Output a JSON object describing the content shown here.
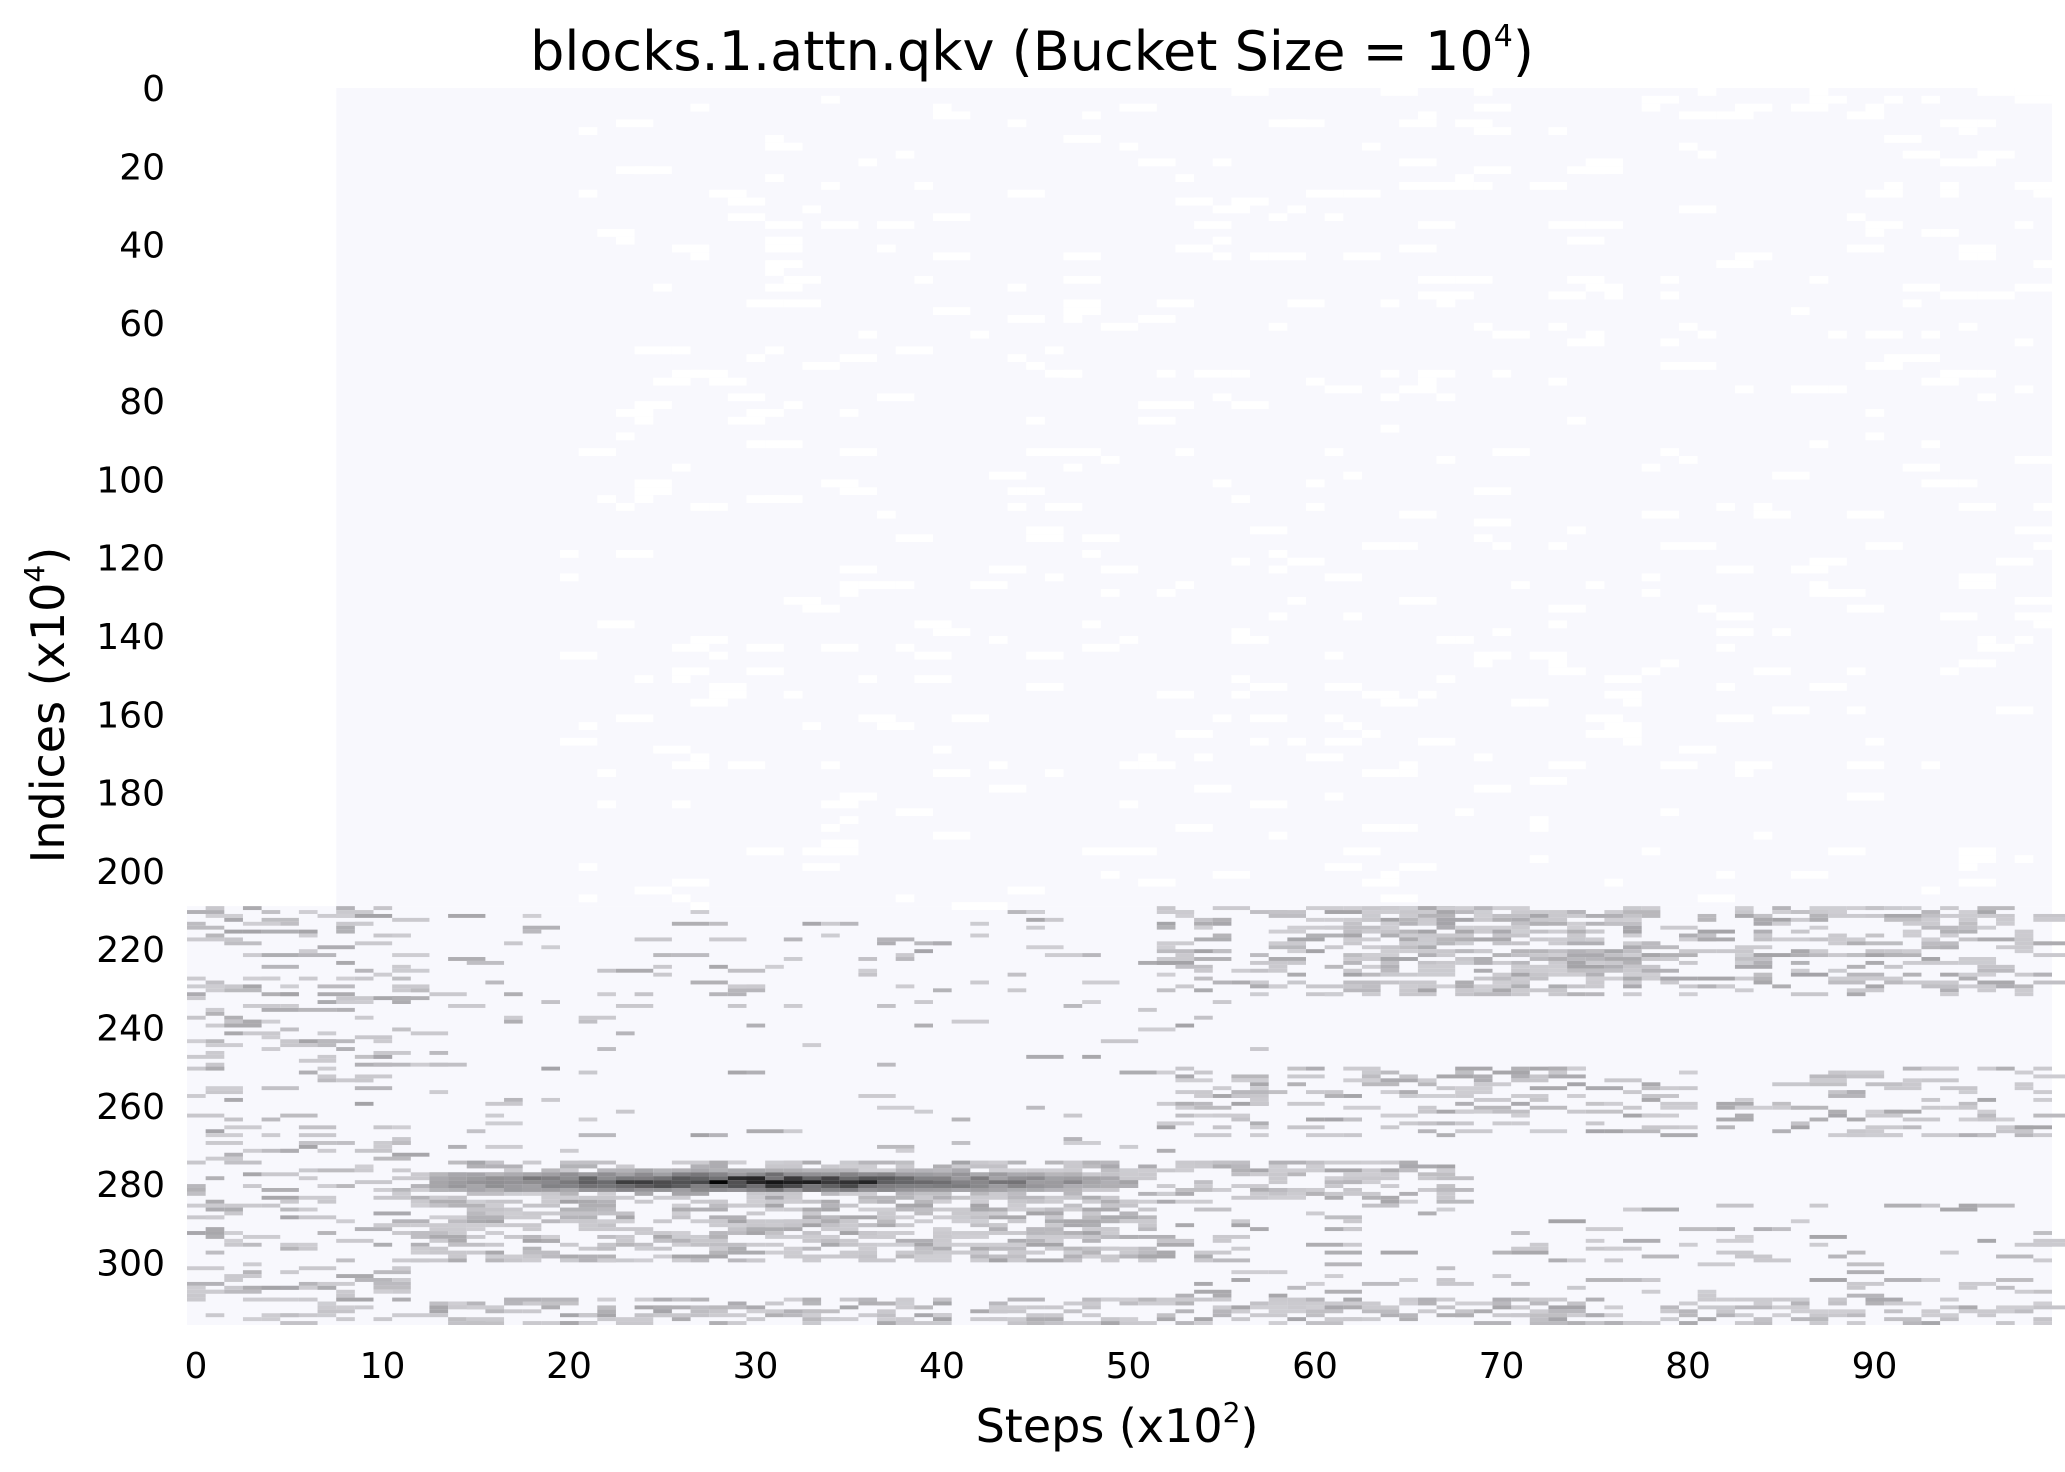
{
  "chart_data": {
    "type": "heatmap",
    "title": "blocks.1.attn.qkv (Bucket Size = 10",
    "title_exponent": "4",
    "title_suffix": ")",
    "xlabel": "Steps (x10",
    "xlabel_exponent": "2",
    "xlabel_suffix": ")",
    "ylabel": "Indices (x10",
    "ylabel_exponent": "4",
    "ylabel_suffix": ")",
    "x_ticks": [
      0,
      10,
      20,
      30,
      40,
      50,
      60,
      70,
      80,
      90
    ],
    "y_ticks": [
      0,
      20,
      40,
      60,
      80,
      100,
      120,
      140,
      160,
      180,
      200,
      220,
      240,
      260,
      280,
      300
    ],
    "x_range": [
      0,
      100
    ],
    "y_range": [
      0,
      316
    ],
    "grid": false,
    "colorbar": false,
    "colormap": [
      "#ffffff",
      "#f8f8fd",
      "#c8c7cc",
      "#000000"
    ],
    "background_bands": [
      {
        "y": [
          0,
          209
        ],
        "x": [
          8,
          100
        ],
        "level": 1
      },
      {
        "y": [
          209,
          316
        ],
        "x": [
          0,
          100
        ],
        "level": 1
      }
    ],
    "activity_regions": [
      {
        "x": [
          0,
          12
        ],
        "y": [
          209,
          316
        ],
        "density": 0.22,
        "level": 2
      },
      {
        "x": [
          12,
          52
        ],
        "y": [
          209,
          232
        ],
        "density": 0.06,
        "level": 2
      },
      {
        "x": [
          52,
          62
        ],
        "y": [
          209,
          232
        ],
        "density": 0.3,
        "level": 2
      },
      {
        "x": [
          62,
          78
        ],
        "y": [
          209,
          232
        ],
        "density": 0.65,
        "level": 2
      },
      {
        "x": [
          78,
          100
        ],
        "y": [
          209,
          232
        ],
        "density": 0.35,
        "level": 2
      },
      {
        "x": [
          12,
          58
        ],
        "y": [
          232,
          274
        ],
        "density": 0.04,
        "level": 2
      },
      {
        "x": [
          52,
          100
        ],
        "y": [
          250,
          268
        ],
        "density": 0.22,
        "level": 2
      },
      {
        "x": [
          12,
          20
        ],
        "y": [
          274,
          300
        ],
        "density": 0.45,
        "level": 2
      },
      {
        "x": [
          20,
          52
        ],
        "y": [
          274,
          300
        ],
        "density": 0.55,
        "level": 2
      },
      {
        "x": [
          52,
          68
        ],
        "y": [
          274,
          285
        ],
        "density": 0.5,
        "level": 2
      },
      {
        "x": [
          52,
          100
        ],
        "y": [
          285,
          309
        ],
        "density": 0.1,
        "level": 2
      },
      {
        "x": [
          12,
          100
        ],
        "y": [
          309,
          316
        ],
        "density": 0.4,
        "level": 2
      }
    ],
    "hot_band": {
      "x": [
        13,
        51
      ],
      "y": [
        276,
        282
      ],
      "peak_x": 30,
      "peak_y": 279,
      "peak_value": 1.0
    },
    "sparse_region": {
      "x": [
        20,
        100
      ],
      "y": [
        0,
        209
      ],
      "density": 0.06,
      "level": 1
    }
  }
}
